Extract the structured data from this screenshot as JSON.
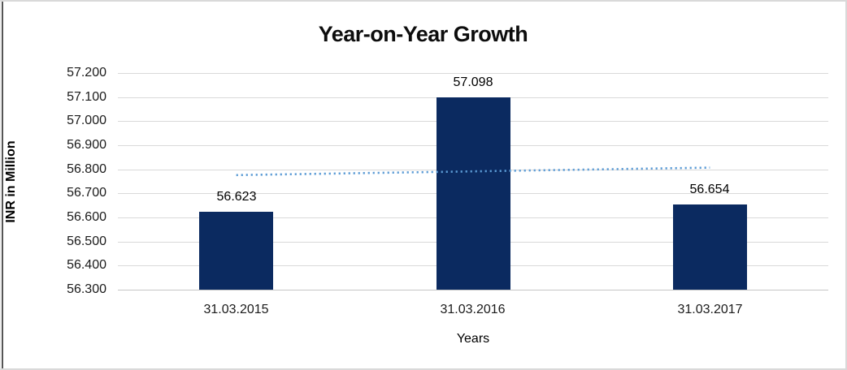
{
  "chart_data": {
    "type": "bar",
    "title": "Year-on-Year Growth",
    "xlabel": "Years",
    "ylabel": "INR in Million",
    "categories": [
      "31.03.2015",
      "31.03.2016",
      "31.03.2017"
    ],
    "values": [
      56.623,
      57.098,
      56.654
    ],
    "data_labels": [
      "56.623",
      "57.098",
      "56.654"
    ],
    "ylim": [
      56.3,
      57.2
    ],
    "ytick_step": 0.1,
    "ytick_labels_top_to_bottom": [
      "57.200",
      "57.100",
      "57.000",
      "56.900",
      "56.800",
      "56.700",
      "56.600",
      "56.500",
      "56.400",
      "56.300"
    ],
    "grid": true,
    "legend": false,
    "trendline": {
      "type": "linear",
      "style": "dotted",
      "start_value": 56.776,
      "end_value": 56.807
    },
    "colors": {
      "bar": "#0b2a60",
      "trendline": "#5b9bd5",
      "gridline": "#d9d9d9",
      "axisline": "#c6c6c6",
      "text": "#000000",
      "border": "#d9d9d9"
    }
  }
}
